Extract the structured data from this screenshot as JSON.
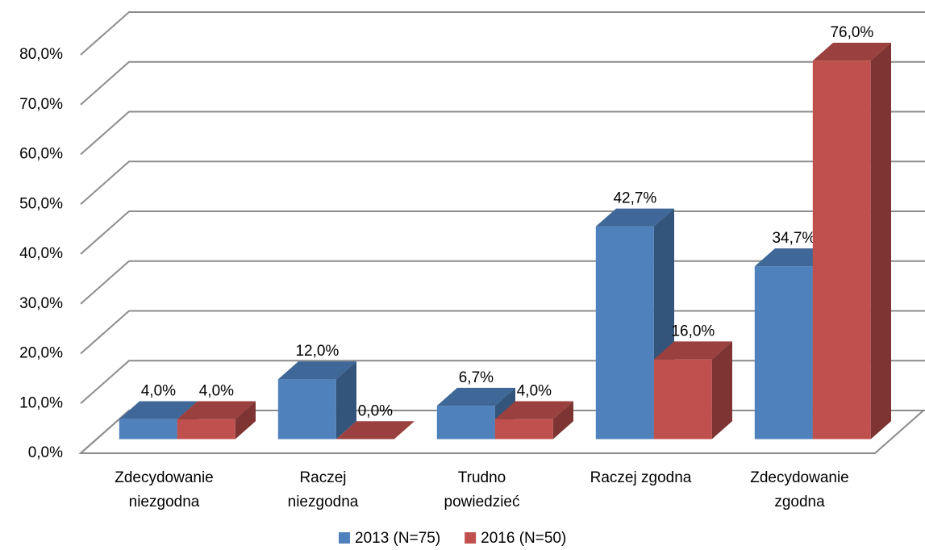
{
  "chart_data": {
    "type": "bar3d",
    "categories": [
      "Zdecydowanie\nniezgodna",
      "Raczej\nniezgodna",
      "Trudno\npowiedzieć",
      "Raczej zgodna",
      "Zdecydowanie\nzgodna"
    ],
    "series": [
      {
        "name": "2013 (N=75)",
        "color": "#4f81bd",
        "values": [
          4.0,
          12.0,
          6.7,
          42.7,
          34.7
        ],
        "value_labels": [
          "4,0%",
          "12,0%",
          "6,7%",
          "42,7%",
          "34,7%"
        ]
      },
      {
        "name": "2016 (N=50)",
        "color": "#c0504d",
        "values": [
          4.0,
          0.0,
          4.0,
          16.0,
          76.0
        ],
        "value_labels": [
          "4,0%",
          "0,0%",
          "4,0%",
          "16,0%",
          "76,0%"
        ]
      }
    ],
    "ylim": [
      0,
      80
    ],
    "yticks": [
      {
        "value": 0,
        "label": "0,0%"
      },
      {
        "value": 10,
        "label": "10,0%"
      },
      {
        "value": 20,
        "label": "20,0%"
      },
      {
        "value": 30,
        "label": "30,0%"
      },
      {
        "value": 40,
        "label": "40,0%"
      },
      {
        "value": 50,
        "label": "50,0%"
      },
      {
        "value": 60,
        "label": "60,0%"
      },
      {
        "value": 70,
        "label": "70,0%"
      },
      {
        "value": 80,
        "label": "80,0%"
      }
    ],
    "grid": true,
    "legend": "bottom"
  }
}
